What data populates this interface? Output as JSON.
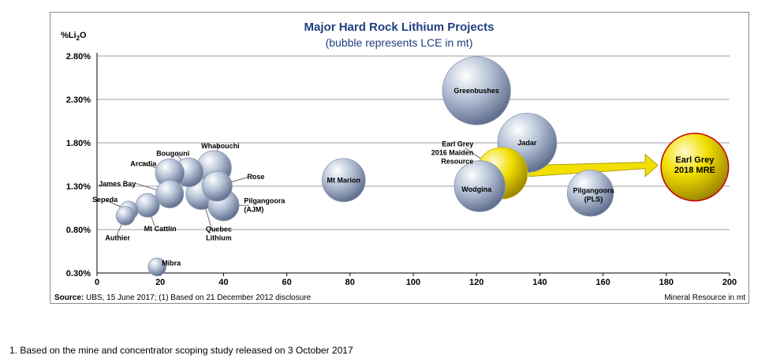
{
  "chart_data": {
    "type": "bubble",
    "title": "Major Hard Rock Lithium Projects",
    "subtitle": "(bubble represents LCE in mt)",
    "ylabel": "%Li",
    "ylabel_sub": "2",
    "ylabel_tail": "O",
    "xlabel": "Mineral Resource in mt",
    "source_prefix": "Source:",
    "source": "UBS, 15 June 2017; (1) Based on 21 December 2012 disclosure",
    "xlim": [
      0,
      200
    ],
    "ylim": [
      0.3,
      2.8
    ],
    "xticks": [
      "0",
      "20",
      "40",
      "60",
      "80",
      "100",
      "120",
      "140",
      "160",
      "180",
      "200"
    ],
    "xtick_values": [
      0,
      20,
      40,
      60,
      80,
      100,
      120,
      140,
      160,
      180,
      200
    ],
    "yticks": [
      "0.30%",
      "0.80%",
      "1.30%",
      "1.80%",
      "2.30%",
      "2.80%"
    ],
    "ytick_values": [
      0.3,
      0.8,
      1.3,
      1.8,
      2.3,
      2.8
    ],
    "grid": "horizontal",
    "points": [
      {
        "name": "Greenbushes",
        "x": 120,
        "y": 2.4,
        "lce": 0.82,
        "color": "#b8c4d8"
      },
      {
        "name": "Jadar",
        "x": 136,
        "y": 1.8,
        "lce": 0.58,
        "color": "#b8c4d8"
      },
      {
        "name": "Earl Grey 2016 Maiden Resource",
        "x": 128,
        "y": 1.45,
        "lce": 0.41,
        "color": "#f2df00"
      },
      {
        "name": "Wodgina",
        "x": 121,
        "y": 1.3,
        "lce": 0.4,
        "color": "#b8c4d8"
      },
      {
        "name": "Pilgangoora (PLS)",
        "x": 156,
        "y": 1.22,
        "lce": 0.31,
        "color": "#b8c4d8"
      },
      {
        "name": "Earl Grey 2018 MRE",
        "x": 189,
        "y": 1.52,
        "lce": 0.8,
        "color": "#f2df00"
      },
      {
        "name": "Mt Marion",
        "x": 78,
        "y": 1.37,
        "lce": 0.26,
        "color": "#b8c4d8"
      },
      {
        "name": "Whabouchi",
        "x": 37,
        "y": 1.51,
        "lce": 0.14,
        "color": "#b8c4d8"
      },
      {
        "name": "Rose",
        "x": 38,
        "y": 1.3,
        "lce": 0.09,
        "color": "#b8c4d8"
      },
      {
        "name": "Bougouni",
        "x": 29,
        "y": 1.46,
        "lce": 0.08,
        "color": "#b8c4d8"
      },
      {
        "name": "Arcadia",
        "x": 23,
        "y": 1.45,
        "lce": 0.08,
        "color": "#b8c4d8"
      },
      {
        "name": "James Bay",
        "x": 23,
        "y": 1.21,
        "lce": 0.07,
        "color": "#b8c4d8"
      },
      {
        "name": "Quebec Lithium",
        "x": 33,
        "y": 1.21,
        "lce": 0.1,
        "color": "#b8c4d8"
      },
      {
        "name": "Pilgangoora (AJM)",
        "x": 40,
        "y": 1.08,
        "lce": 0.1,
        "color": "#b8c4d8"
      },
      {
        "name": "Mt Cattlin",
        "x": 16,
        "y": 1.08,
        "lce": 0.04,
        "color": "#b8c4d8"
      },
      {
        "name": "Sepeda",
        "x": 10,
        "y": 1.02,
        "lce": 0.015,
        "color": "#b8c4d8"
      },
      {
        "name": "Authier",
        "x": 9,
        "y": 0.96,
        "lce": 0.015,
        "color": "#b8c4d8"
      },
      {
        "name": "Mibra",
        "x": 19,
        "y": 0.37,
        "lce": 0.012,
        "color": "#b8c4d8"
      }
    ],
    "labels": {
      "Greenbushes": [
        "Greenbushes"
      ],
      "Jadar": [
        "Jadar"
      ],
      "Earl Grey 2016 Maiden Resource": [
        "Earl Grey",
        "2016 Maiden",
        "Resource"
      ],
      "Wodgina": [
        "Wodgina"
      ],
      "Pilgangoora (PLS)": [
        "Pilgangoora",
        "(PLS)"
      ],
      "Earl Grey 2018 MRE": [
        "Earl Grey",
        "2018 MRE"
      ],
      "Mt Marion": [
        "Mt Marion"
      ],
      "Whabouchi": [
        "Whabouchi"
      ],
      "Rose": [
        "Rose"
      ],
      "Bougouni": [
        "Bougouni"
      ],
      "Arcadia": [
        "Arcadia"
      ],
      "James Bay": [
        "James Bay"
      ],
      "Quebec Lithium": [
        "Quebec",
        "Lithium"
      ],
      "Pilgangoora (AJM)": [
        "Pilgangoora",
        "(AJM)"
      ],
      "Mt Cattlin": [
        "Mt Cattlin"
      ],
      "Sepeda": [
        "Sepeda"
      ],
      "Authier": [
        "Authier"
      ],
      "Mibra": [
        "Mibra"
      ]
    },
    "arrow": {
      "from": "Earl Grey 2016 Maiden Resource",
      "to": "Earl Grey 2018 MRE",
      "color": "#f2df00"
    },
    "colors": {
      "title": "#1f3f7f",
      "bubble": "#b8c4d8",
      "highlight": "#f2df00",
      "highlight_edge": "#c00000",
      "frame": "#8a8a8a"
    }
  },
  "footnote": "1. Based on the mine and concentrator scoping study released on 3 October 2017"
}
